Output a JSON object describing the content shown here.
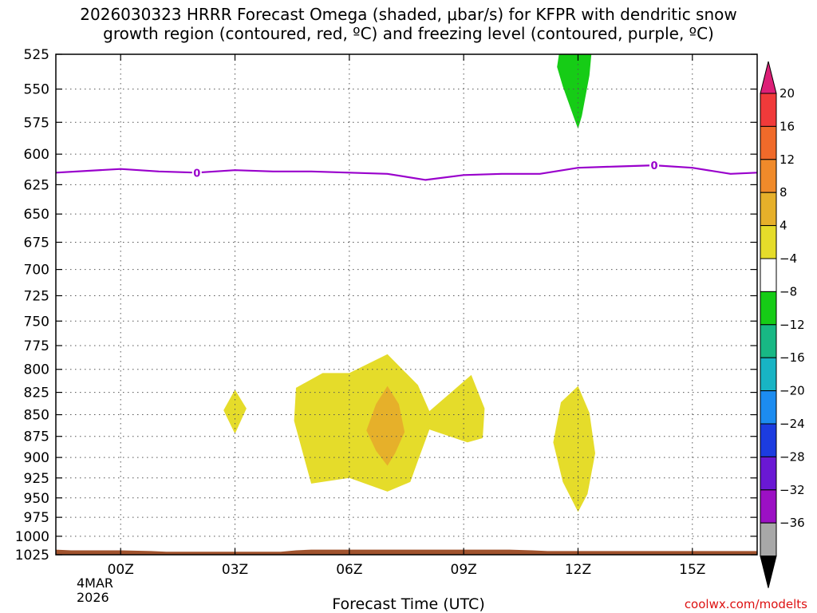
{
  "title": {
    "line1": "2026030323 HRRR Forecast Omega (shaded, μbar/s) for KFPR with dendritic snow",
    "line2": "growth region (contoured, red, ºC) and freezing level (contoured, purple, ºC)"
  },
  "footer": {
    "xlabel": "Forecast Time (UTC)",
    "credit": "coolwx.com/modelts",
    "date_line1": "4MAR",
    "date_line2": "2026"
  },
  "colors": {
    "freezing_level": "#9900cc",
    "ground": "#a0522d",
    "grid": "#555555"
  },
  "chart_data": {
    "type": "heatmap",
    "x_unit": "forecast hour (UTC)",
    "y_unit": "pressure (hPa)",
    "xlim": [
      -1.7,
      16.7
    ],
    "ylim": [
      1025,
      525
    ],
    "y_scale": "log",
    "grid": true,
    "x_ticks": [
      {
        "hour": 0,
        "label": "00Z"
      },
      {
        "hour": 3,
        "label": "03Z"
      },
      {
        "hour": 6,
        "label": "06Z"
      },
      {
        "hour": 9,
        "label": "09Z"
      },
      {
        "hour": 12,
        "label": "12Z"
      },
      {
        "hour": 15,
        "label": "15Z"
      }
    ],
    "y_ticks": [
      525,
      550,
      575,
      600,
      625,
      650,
      675,
      700,
      725,
      750,
      775,
      800,
      825,
      850,
      875,
      900,
      925,
      950,
      975,
      1000,
      1025
    ],
    "colorbar": {
      "labels": [
        "20",
        "16",
        "12",
        "8",
        "4",
        "−4",
        "−8",
        "−12",
        "−16",
        "−20",
        "−24",
        "−28",
        "−32",
        "−36"
      ],
      "colors": [
        "#dd1f77",
        "#f03a3a",
        "#f06a2a",
        "#f08a2a",
        "#e6b02a",
        "#e5dc2a",
        "#ffffff",
        "#16cc16",
        "#18b884",
        "#18b4c4",
        "#1c8cf0",
        "#1c3ce0",
        "#6a18d4",
        "#9c10c4",
        "#a8a8a8",
        "#000000"
      ]
    },
    "freezing_level": {
      "value": "0",
      "label_hours": [
        2,
        14
      ],
      "points": [
        [
          -1.7,
          615
        ],
        [
          0,
          612
        ],
        [
          1,
          614
        ],
        [
          2,
          615
        ],
        [
          3,
          613
        ],
        [
          4,
          614
        ],
        [
          5,
          614
        ],
        [
          6,
          615
        ],
        [
          7,
          616
        ],
        [
          8,
          621
        ],
        [
          9,
          617
        ],
        [
          10,
          616
        ],
        [
          11,
          616
        ],
        [
          12,
          611
        ],
        [
          13,
          610
        ],
        [
          14,
          609
        ],
        [
          15,
          611
        ],
        [
          16,
          616
        ],
        [
          16.7,
          615
        ]
      ]
    },
    "shaded_regions": [
      {
        "level": "-8 to -4",
        "color": "#16cc16",
        "points": [
          [
            11.5,
            525
          ],
          [
            12.35,
            525
          ],
          [
            12.3,
            540
          ],
          [
            12.1,
            570
          ],
          [
            12.0,
            580
          ],
          [
            11.9,
            572
          ],
          [
            11.6,
            548
          ],
          [
            11.45,
            534
          ]
        ]
      },
      {
        "level": "4 to 8",
        "color": "#e5dc2a",
        "points": [
          [
            3,
            822
          ],
          [
            3.3,
            843
          ],
          [
            3,
            872
          ],
          [
            2.7,
            845
          ]
        ]
      },
      {
        "level": "4 to 8",
        "color": "#e5dc2a",
        "points": [
          [
            5.3,
            804
          ],
          [
            6,
            804
          ],
          [
            7,
            784
          ],
          [
            7.8,
            817
          ],
          [
            8.1,
            846
          ],
          [
            9.2,
            806
          ],
          [
            9.55,
            843
          ],
          [
            9.5,
            877
          ],
          [
            9.1,
            882
          ],
          [
            8.1,
            867
          ],
          [
            7.8,
            904
          ],
          [
            7.6,
            930
          ],
          [
            7,
            942
          ],
          [
            6,
            925
          ],
          [
            5.0,
            932
          ],
          [
            4.8,
            898
          ],
          [
            4.55,
            857
          ],
          [
            4.6,
            820
          ]
        ]
      },
      {
        "level": "8 to 12",
        "color": "#e6b02a",
        "points": [
          [
            7,
            818
          ],
          [
            7.3,
            838
          ],
          [
            7.45,
            870
          ],
          [
            7.2,
            895
          ],
          [
            7,
            910
          ],
          [
            6.7,
            892
          ],
          [
            6.45,
            868
          ],
          [
            6.7,
            838
          ]
        ]
      },
      {
        "level": "4 to 8",
        "color": "#e5dc2a",
        "points": [
          [
            12,
            818
          ],
          [
            12.3,
            848
          ],
          [
            12.45,
            895
          ],
          [
            12.25,
            945
          ],
          [
            12,
            968
          ],
          [
            11.6,
            930
          ],
          [
            11.35,
            882
          ],
          [
            11.55,
            836
          ]
        ]
      }
    ],
    "terrain_top": [
      [
        -1.7,
        1018
      ],
      [
        -1.3,
        1019
      ],
      [
        0,
        1019
      ],
      [
        0.8,
        1020
      ],
      [
        1.2,
        1021
      ],
      [
        4.2,
        1021
      ],
      [
        4.6,
        1019
      ],
      [
        5.0,
        1018
      ],
      [
        6,
        1018
      ],
      [
        7,
        1018
      ],
      [
        9,
        1018
      ],
      [
        10.2,
        1018
      ],
      [
        10.8,
        1019
      ],
      [
        11.2,
        1020
      ],
      [
        12,
        1020
      ],
      [
        16.7,
        1020
      ]
    ]
  }
}
